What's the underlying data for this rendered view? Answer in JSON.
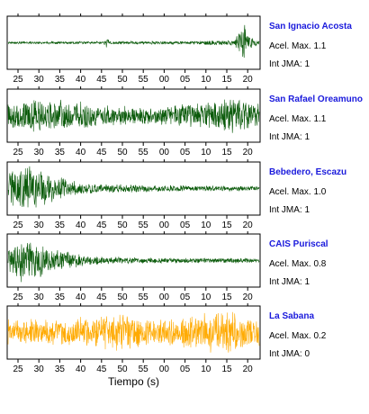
{
  "chart_data": {
    "type": "line",
    "xlabel": "Tiempo (s)",
    "x_ticks": [
      "25",
      "30",
      "35",
      "40",
      "45",
      "50",
      "55",
      "00",
      "05",
      "10",
      "15",
      "20"
    ],
    "panels": [
      {
        "station": "San Ignacio Acosta",
        "accel_label": "Acel. Max. 1.1",
        "jma_label": "Int JMA: 1",
        "color": "#0a5a0a",
        "profile": [
          {
            "t": 0.0,
            "amp": 0.05
          },
          {
            "t": 0.38,
            "amp": 0.06
          },
          {
            "t": 0.39,
            "amp": 0.22
          },
          {
            "t": 0.41,
            "amp": 0.06
          },
          {
            "t": 0.72,
            "amp": 0.07
          },
          {
            "t": 0.9,
            "amp": 0.12
          },
          {
            "t": 0.94,
            "amp": 0.95
          },
          {
            "t": 0.965,
            "amp": 0.3
          },
          {
            "t": 1.0,
            "amp": 0.08
          }
        ]
      },
      {
        "station": "San Rafael Oreamuno",
        "accel_label": "Acel. Max. 1.1",
        "jma_label": "Int JMA: 1",
        "color": "#0a5a0a",
        "profile": [
          {
            "t": 0.0,
            "amp": 0.65
          },
          {
            "t": 0.2,
            "amp": 0.7
          },
          {
            "t": 0.4,
            "amp": 0.45
          },
          {
            "t": 0.55,
            "amp": 0.35
          },
          {
            "t": 0.7,
            "amp": 0.5
          },
          {
            "t": 0.85,
            "amp": 0.75
          },
          {
            "t": 1.0,
            "amp": 0.65
          }
        ]
      },
      {
        "station": "Bebedero, Escazu",
        "accel_label": "Acel. Max. 1.0",
        "jma_label": "Int JMA: 1",
        "color": "#0a5a0a",
        "profile": [
          {
            "t": 0.0,
            "amp": 0.7
          },
          {
            "t": 0.08,
            "amp": 1.0
          },
          {
            "t": 0.18,
            "amp": 0.55
          },
          {
            "t": 0.3,
            "amp": 0.22
          },
          {
            "t": 0.55,
            "amp": 0.15
          },
          {
            "t": 1.0,
            "amp": 0.1
          }
        ]
      },
      {
        "station": "CAIS Puriscal",
        "accel_label": "Acel. Max. 0.8",
        "jma_label": "Int JMA: 1",
        "color": "#0a5a0a",
        "profile": [
          {
            "t": 0.0,
            "amp": 0.6
          },
          {
            "t": 0.06,
            "amp": 1.0
          },
          {
            "t": 0.2,
            "amp": 0.45
          },
          {
            "t": 0.35,
            "amp": 0.18
          },
          {
            "t": 0.6,
            "amp": 0.12
          },
          {
            "t": 1.0,
            "amp": 0.1
          }
        ]
      },
      {
        "station": "La Sabana",
        "accel_label": "Acel. Max. 0.2",
        "jma_label": "Int JMA: 0",
        "color": "#ffaa00",
        "profile": [
          {
            "t": 0.0,
            "amp": 0.55
          },
          {
            "t": 0.3,
            "amp": 0.65
          },
          {
            "t": 0.45,
            "amp": 0.8
          },
          {
            "t": 0.6,
            "amp": 0.55
          },
          {
            "t": 0.88,
            "amp": 0.95
          },
          {
            "t": 1.0,
            "amp": 0.6
          }
        ]
      }
    ]
  }
}
